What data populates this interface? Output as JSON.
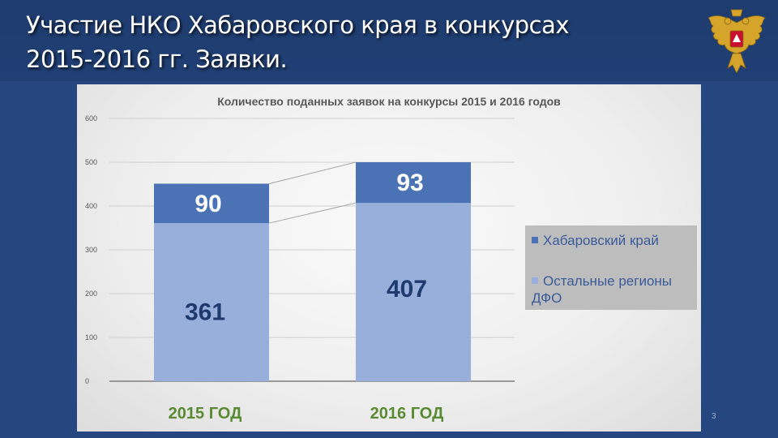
{
  "slide": {
    "title_line1": "Участие НКО Хабаровского края в конкурсах",
    "title_line2": "2015-2016 гг. Заявки.",
    "page_number": "3"
  },
  "emblem": {
    "icon": "russian-coat-of-arms-icon"
  },
  "colors": {
    "background": "#25467e",
    "series_top": "#4a72b4",
    "series_bottom": "#98aedb",
    "category_label": "#5a8a32",
    "value_label_bottom": "#1f3a6e"
  },
  "chart_data": {
    "type": "bar",
    "stacked": true,
    "title": "Количество поданных заявок на конкурсы 2015 и 2016 годов",
    "categories": [
      "2015 ГОД",
      "2016 ГОД"
    ],
    "series": [
      {
        "name": "Остальные регионы ДФО",
        "values": [
          361,
          407
        ],
        "labels": [
          "361",
          "407"
        ]
      },
      {
        "name": "Хабаровский край",
        "values": [
          90,
          93
        ],
        "labels": [
          "90",
          "93"
        ]
      }
    ],
    "y_ticks": [
      "0",
      "100",
      "200",
      "300",
      "400",
      "500",
      "600"
    ],
    "ylim": [
      0,
      600
    ],
    "grid": true,
    "legend_position": "right"
  }
}
